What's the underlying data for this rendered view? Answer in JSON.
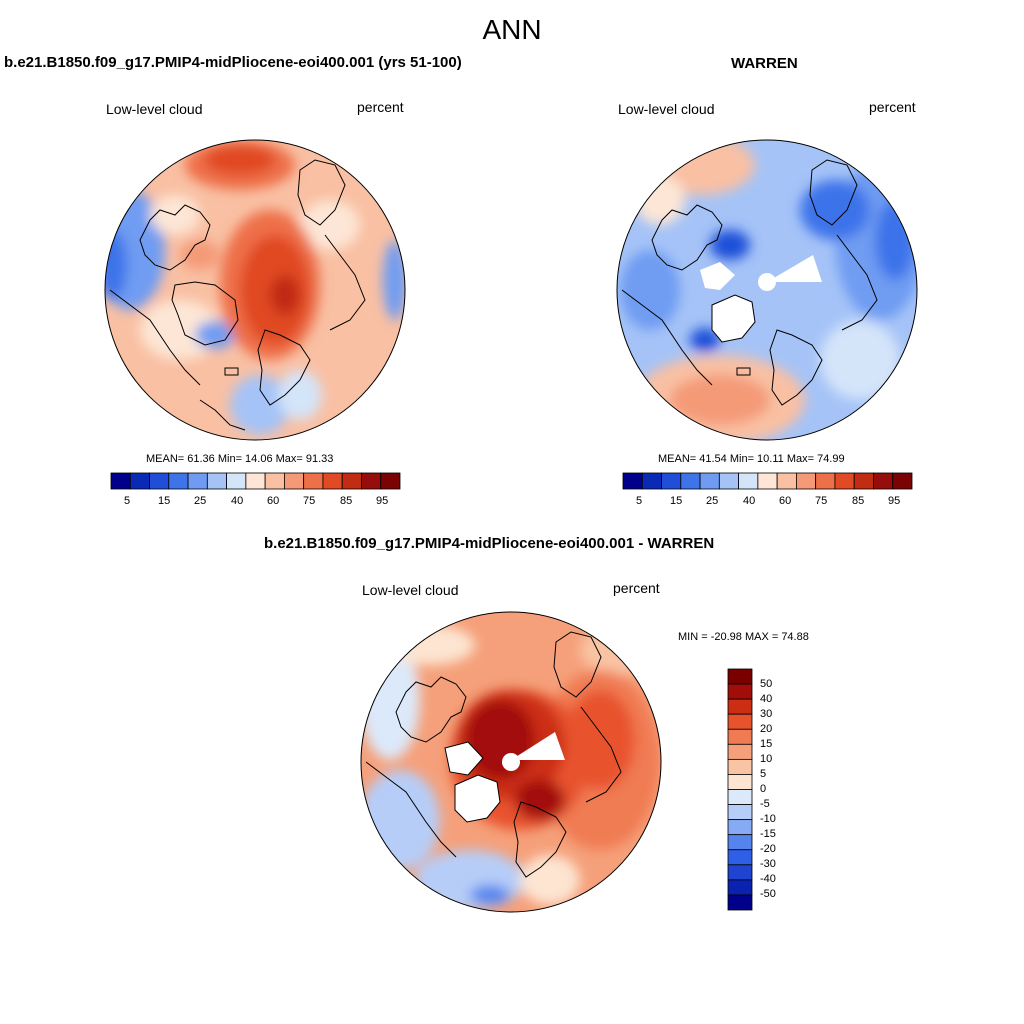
{
  "page": {
    "title": "ANN"
  },
  "panels": [
    {
      "title": "b.e21.B1850.f09_g17.PMIP4-midPliocene-eoi400.001 (yrs 51-100)",
      "left_label": "Low-level cloud",
      "right_label": "percent",
      "stats": "MEAN=  61.36  Min=  14.06  Max=  91.33",
      "colorbar_ticks": [
        "5",
        "15",
        "25",
        "40",
        "60",
        "75",
        "85",
        "95"
      ]
    },
    {
      "title": "WARREN",
      "left_label": "Low-level cloud",
      "right_label": "percent",
      "stats": "MEAN=  41.54  Min=  10.11  Max=  74.99",
      "colorbar_ticks": [
        "5",
        "15",
        "25",
        "40",
        "60",
        "75",
        "85",
        "95"
      ]
    },
    {
      "title": "b.e21.B1850.f09_g17.PMIP4-midPliocene-eoi400.001 - WARREN",
      "left_label": "Low-level cloud",
      "right_label": "percent",
      "stats": "MIN = -20.98 MAX =  74.88",
      "colorbar_ticks": [
        "50",
        "40",
        "30",
        "20",
        "15",
        "10",
        "5",
        "0",
        "-5",
        "-10",
        "-15",
        "-20",
        "-30",
        "-40",
        "-50"
      ]
    }
  ],
  "colors": {
    "abs_scale": [
      "#00008b",
      "#0a2ab5",
      "#1f4fd8",
      "#3e73ea",
      "#6f9cf2",
      "#a5c3f7",
      "#d4e4f9",
      "#fde6d6",
      "#f9c0a3",
      "#f49a77",
      "#ee7049",
      "#e04a24",
      "#c12c13",
      "#960e0a",
      "#7a0403"
    ],
    "diff_scale": [
      "#00008b",
      "#0a22b0",
      "#1f44cf",
      "#2f5fe6",
      "#5584ee",
      "#86aaf4",
      "#b6cdf8",
      "#dce9fa",
      "#fde5d2",
      "#f9c4a4",
      "#f5a07a",
      "#f07b53",
      "#e8532d",
      "#cc2e13",
      "#a30d09",
      "#7a0000"
    ]
  }
}
